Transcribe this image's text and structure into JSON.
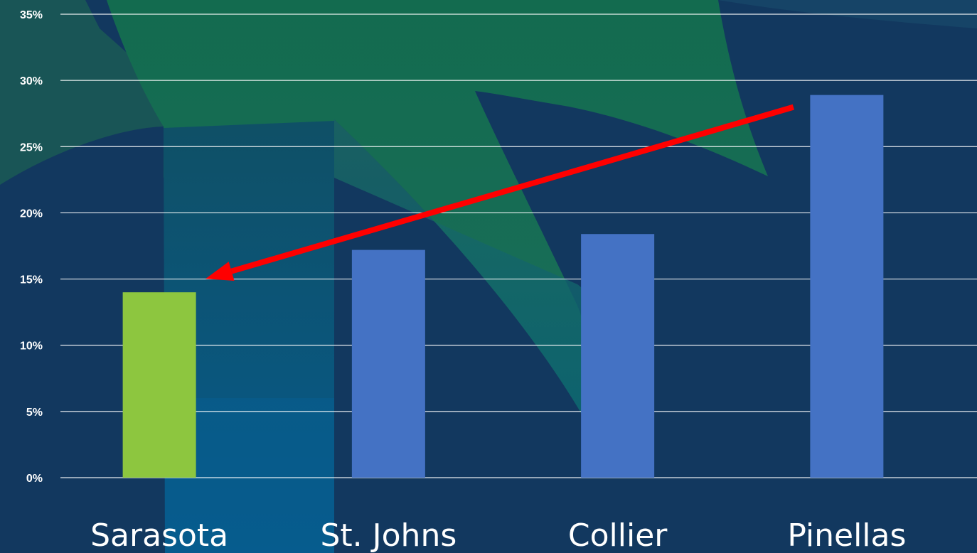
{
  "chart_data": {
    "type": "bar",
    "title": "",
    "xlabel": "",
    "ylabel": "",
    "categories": [
      "Sarasota",
      "St. Johns",
      "Collier",
      "Pinellas"
    ],
    "values": [
      14.0,
      17.2,
      18.4,
      28.9
    ],
    "bar_colors": [
      "#8dc63f",
      "#4472c4",
      "#4472c4",
      "#4472c4"
    ],
    "ylim": [
      0,
      35
    ],
    "yticks": [
      0,
      5,
      10,
      15,
      20,
      25,
      30,
      35
    ],
    "ytick_labels": [
      "0%",
      "5%",
      "10%",
      "15%",
      "20%",
      "25%",
      "30%",
      "35%"
    ],
    "grid": true,
    "annotation": {
      "type": "arrow",
      "from": "Pinellas",
      "to": "Sarasota",
      "color": "#ff0000"
    }
  },
  "colors": {
    "background": "#12385f",
    "gridline": "#ffffff",
    "text": "#ffffff"
  }
}
